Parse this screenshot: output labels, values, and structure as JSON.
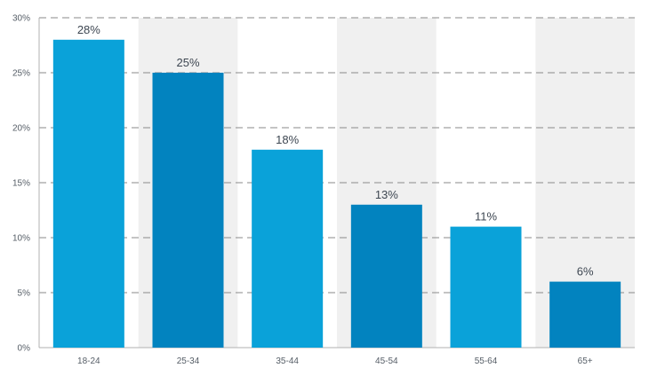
{
  "chart_data": {
    "type": "bar",
    "categories": [
      "18-24",
      "25-34",
      "35-44",
      "45-54",
      "55-64",
      "65+"
    ],
    "values": [
      28,
      25,
      18,
      13,
      11,
      6
    ],
    "value_labels": [
      "28%",
      "25%",
      "18%",
      "13%",
      "11%",
      "6%"
    ],
    "ylim": [
      0,
      30
    ],
    "yticks": [
      0,
      5,
      10,
      15,
      20,
      25,
      30
    ],
    "ytick_labels": [
      "0%",
      "5%",
      "10%",
      "15%",
      "20%",
      "25%",
      "30%"
    ],
    "title": "",
    "xlabel": "",
    "ylabel": "",
    "grid": true,
    "legend": "none",
    "colors": {
      "bar_light": "#0aa2d9",
      "bar_dark": "#0283bf",
      "band": "#f0f0f0",
      "grid": "#8a8a8a",
      "axis": "#b0b0b0"
    }
  }
}
